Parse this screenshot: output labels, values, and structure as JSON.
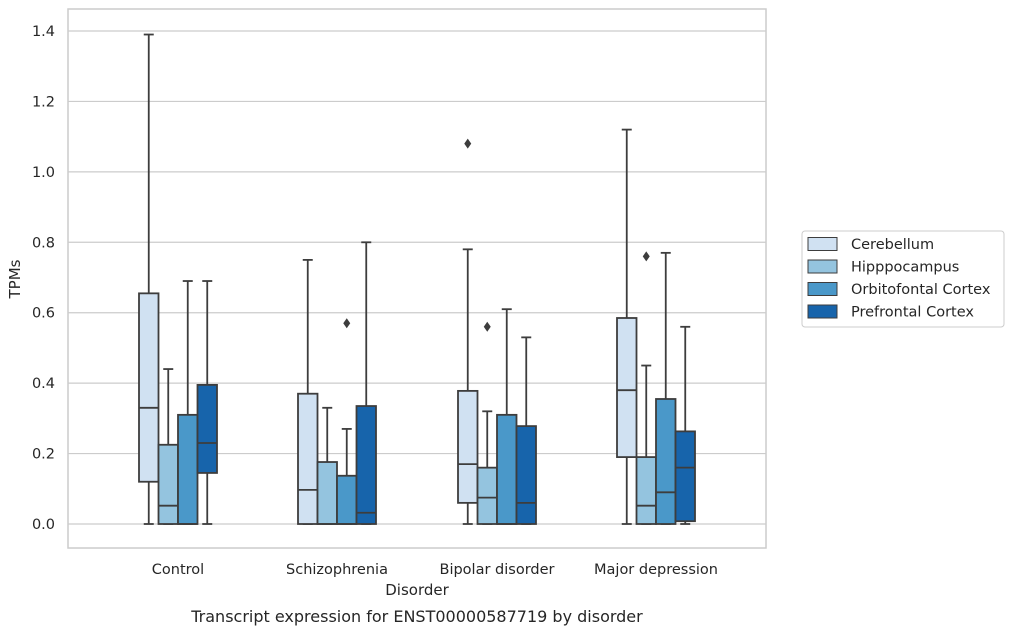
{
  "chart_data": {
    "type": "boxplot",
    "caption": "Transcript expression for ENST00000587719 by disorder",
    "xlabel": "Disorder",
    "ylabel": "TPMs",
    "ylim": [
      -0.065,
      1.455
    ],
    "yticks": [
      "0.0",
      "0.2",
      "0.4",
      "0.6",
      "0.8",
      "1.0",
      "1.2",
      "1.4"
    ],
    "categories": [
      "Control",
      "Schizophrenia",
      "Bipolar disorder",
      "Major depression"
    ],
    "grid": "horizontal",
    "legend_position": "right",
    "series": [
      {
        "name": "Cerebellum",
        "color": "#d0e1f2",
        "boxes": [
          {
            "whislo": 0.0,
            "q1": 0.12,
            "med": 0.33,
            "q3": 0.655,
            "whishi": 1.39,
            "fliers": []
          },
          {
            "whislo": 0.0,
            "q1": 0.0,
            "med": 0.097,
            "q3": 0.37,
            "whishi": 0.75,
            "fliers": []
          },
          {
            "whislo": 0.0,
            "q1": 0.06,
            "med": 0.17,
            "q3": 0.378,
            "whishi": 0.78,
            "fliers": [
              1.08
            ]
          },
          {
            "whislo": 0.0,
            "q1": 0.19,
            "med": 0.38,
            "q3": 0.585,
            "whishi": 1.12,
            "fliers": []
          }
        ]
      },
      {
        "name": "Hipppocampus",
        "color": "#94c4df",
        "boxes": [
          {
            "whislo": 0.0,
            "q1": 0.0,
            "med": 0.052,
            "q3": 0.225,
            "whishi": 0.44,
            "fliers": []
          },
          {
            "whislo": 0.0,
            "q1": 0.0,
            "med": 0.0,
            "q3": 0.176,
            "whishi": 0.33,
            "fliers": []
          },
          {
            "whislo": 0.0,
            "q1": 0.0,
            "med": 0.075,
            "q3": 0.16,
            "whishi": 0.32,
            "fliers": [
              0.56
            ]
          },
          {
            "whislo": 0.0,
            "q1": 0.0,
            "med": 0.052,
            "q3": 0.19,
            "whishi": 0.45,
            "fliers": [
              0.76
            ]
          }
        ]
      },
      {
        "name": "Orbitofontal Cortex",
        "color": "#4a98c9",
        "boxes": [
          {
            "whislo": 0.0,
            "q1": 0.0,
            "med": 0.0,
            "q3": 0.31,
            "whishi": 0.69,
            "fliers": []
          },
          {
            "whislo": 0.0,
            "q1": 0.0,
            "med": 0.0,
            "q3": 0.137,
            "whishi": 0.27,
            "fliers": [
              0.57
            ]
          },
          {
            "whislo": 0.0,
            "q1": 0.0,
            "med": 0.0,
            "q3": 0.31,
            "whishi": 0.61,
            "fliers": []
          },
          {
            "whislo": 0.0,
            "q1": 0.0,
            "med": 0.09,
            "q3": 0.355,
            "whishi": 0.77,
            "fliers": []
          }
        ]
      },
      {
        "name": "Prefrontal Cortex",
        "color": "#1764ab",
        "boxes": [
          {
            "whislo": 0.0,
            "q1": 0.145,
            "med": 0.23,
            "q3": 0.395,
            "whishi": 0.69,
            "fliers": []
          },
          {
            "whislo": 0.0,
            "q1": 0.0,
            "med": 0.032,
            "q3": 0.335,
            "whishi": 0.8,
            "fliers": []
          },
          {
            "whislo": 0.0,
            "q1": 0.0,
            "med": 0.06,
            "q3": 0.278,
            "whishi": 0.53,
            "fliers": []
          },
          {
            "whislo": 0.0,
            "q1": 0.008,
            "med": 0.16,
            "q3": 0.263,
            "whishi": 0.56,
            "fliers": []
          }
        ]
      }
    ]
  }
}
